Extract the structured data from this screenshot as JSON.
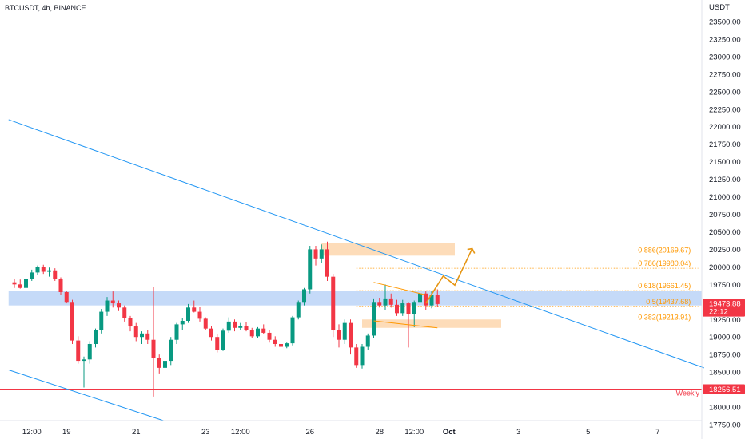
{
  "header": {
    "symbol_title": "BTCUSDT, 4h, BINANCE",
    "currency": "USDT"
  },
  "colors": {
    "up": "#089981",
    "down": "#f23645",
    "trendline": "#2196f3",
    "fib": "#ff9800",
    "zone_blue": "#bbd3f7",
    "zone_orange": "#fcd3a8",
    "weekly_line": "#f23645",
    "price_badge": "#f23645"
  },
  "chart_data": {
    "type": "candlestick",
    "ylim": [
      17750,
      23750
    ],
    "y_ticks": [
      "23500.00",
      "23250.00",
      "23000.00",
      "22750.00",
      "22500.00",
      "22250.00",
      "22000.00",
      "21750.00",
      "21500.00",
      "21250.00",
      "21000.00",
      "20750.00",
      "20500.00",
      "20250.00",
      "20000.00",
      "19750.00",
      "19500.00",
      "19250.00",
      "19000.00",
      "18750.00",
      "18500.00",
      "18250.00",
      "18000.00",
      "17750.00"
    ],
    "x_ticks": [
      {
        "label": "12:00",
        "t": 3
      },
      {
        "label": "19",
        "t": 9
      },
      {
        "label": "21",
        "t": 21
      },
      {
        "label": "23",
        "t": 33
      },
      {
        "label": "12:00",
        "t": 39
      },
      {
        "label": "26",
        "t": 51
      },
      {
        "label": "28",
        "t": 63
      },
      {
        "label": "12:00",
        "t": 69
      },
      {
        "label": "Oct",
        "t": 75
      },
      {
        "label": "3",
        "t": 87
      },
      {
        "label": "5",
        "t": 99
      },
      {
        "label": "7",
        "t": 111
      }
    ],
    "candles": [
      [
        0,
        19780,
        19830,
        19700,
        19750
      ],
      [
        1,
        19750,
        19820,
        19690,
        19700
      ],
      [
        2,
        19700,
        19860,
        19680,
        19830
      ],
      [
        3,
        19830,
        19960,
        19800,
        19920
      ],
      [
        4,
        19920,
        20020,
        19880,
        20000
      ],
      [
        5,
        20000,
        20030,
        19900,
        19930
      ],
      [
        6,
        19930,
        19990,
        19860,
        19950
      ],
      [
        7,
        19950,
        19980,
        19800,
        19830
      ],
      [
        8,
        19830,
        19850,
        19600,
        19640
      ],
      [
        9,
        19640,
        19660,
        19480,
        19500
      ],
      [
        10,
        19500,
        19530,
        18900,
        18950
      ],
      [
        11,
        18950,
        19010,
        18620,
        18660
      ],
      [
        12,
        18660,
        18720,
        18280,
        18680
      ],
      [
        13,
        18680,
        18940,
        18620,
        18900
      ],
      [
        14,
        18900,
        19120,
        18850,
        19100
      ],
      [
        15,
        19100,
        19400,
        19050,
        19360
      ],
      [
        16,
        19360,
        19570,
        19300,
        19520
      ],
      [
        17,
        19520,
        19650,
        19420,
        19480
      ],
      [
        18,
        19480,
        19520,
        19370,
        19420
      ],
      [
        19,
        19420,
        19450,
        19220,
        19270
      ],
      [
        20,
        19270,
        19300,
        19080,
        19150
      ],
      [
        21,
        19150,
        19200,
        18940,
        19000
      ],
      [
        22,
        19000,
        19080,
        18900,
        19050
      ],
      [
        23,
        19050,
        19100,
        18900,
        18960
      ],
      [
        24,
        18960,
        19720,
        18150,
        18700
      ],
      [
        25,
        18700,
        18750,
        18480,
        18560
      ],
      [
        26,
        18560,
        18720,
        18500,
        18660
      ],
      [
        27,
        18660,
        19000,
        18600,
        18960
      ],
      [
        28,
        18960,
        19200,
        18900,
        19180
      ],
      [
        29,
        19180,
        19270,
        19100,
        19230
      ],
      [
        30,
        19230,
        19470,
        19200,
        19420
      ],
      [
        31,
        19420,
        19520,
        19350,
        19360
      ],
      [
        32,
        19360,
        19430,
        19220,
        19260
      ],
      [
        33,
        19260,
        19280,
        19100,
        19120
      ],
      [
        34,
        19120,
        19160,
        18950,
        19000
      ],
      [
        35,
        19000,
        19040,
        18780,
        18820
      ],
      [
        36,
        18820,
        19120,
        18800,
        19090
      ],
      [
        37,
        19090,
        19280,
        19060,
        19220
      ],
      [
        38,
        19220,
        19250,
        19080,
        19130
      ],
      [
        39,
        19130,
        19200,
        19100,
        19160
      ],
      [
        40,
        19160,
        19210,
        19080,
        19100
      ],
      [
        41,
        19100,
        19130,
        18990,
        19010
      ],
      [
        42,
        19010,
        19140,
        18990,
        19120
      ],
      [
        43,
        19120,
        19180,
        19040,
        19060
      ],
      [
        44,
        19060,
        19100,
        18920,
        18960
      ],
      [
        45,
        18960,
        19010,
        18860,
        18900
      ],
      [
        46,
        18900,
        18950,
        18800,
        18860
      ],
      [
        47,
        18860,
        18920,
        18840,
        18910
      ],
      [
        48,
        18910,
        19300,
        18880,
        19280
      ],
      [
        49,
        19280,
        19520,
        19250,
        19500
      ],
      [
        50,
        19500,
        19700,
        19450,
        19680
      ],
      [
        51,
        19680,
        20300,
        19620,
        20250
      ],
      [
        52,
        20250,
        20300,
        20020,
        20120
      ],
      [
        53,
        20120,
        20320,
        20060,
        20250
      ],
      [
        54,
        20250,
        20360,
        19800,
        19860
      ],
      [
        55,
        19860,
        19900,
        19000,
        19100
      ],
      [
        56,
        19100,
        19180,
        18850,
        18960
      ],
      [
        57,
        18960,
        19250,
        18900,
        19200
      ],
      [
        58,
        19200,
        19250,
        18750,
        18850
      ],
      [
        59,
        18850,
        18900,
        18560,
        18600
      ],
      [
        60,
        18600,
        18900,
        18550,
        18860
      ],
      [
        61,
        18860,
        19050,
        18820,
        19020
      ],
      [
        62,
        19020,
        19550,
        18990,
        19500
      ],
      [
        63,
        19500,
        19560,
        19420,
        19450
      ],
      [
        64,
        19450,
        19750,
        19380,
        19550
      ],
      [
        65,
        19550,
        19620,
        19420,
        19460
      ],
      [
        66,
        19460,
        19530,
        19300,
        19340
      ],
      [
        67,
        19340,
        19530,
        19300,
        19480
      ],
      [
        68,
        19480,
        19500,
        18850,
        19330
      ],
      [
        69,
        19330,
        19520,
        19140,
        19500
      ],
      [
        70,
        19500,
        19720,
        19430,
        19620
      ],
      [
        71,
        19620,
        19650,
        19380,
        19450
      ],
      [
        72,
        19450,
        19650,
        19410,
        19600
      ],
      [
        73,
        19600,
        19680,
        19430,
        19470
      ]
    ],
    "fib_levels": [
      {
        "label": "0.886(20169.67)",
        "price": 20169.67
      },
      {
        "label": "0.786(19980.04)",
        "price": 19980.04
      },
      {
        "label": "0.618(19661.45)",
        "price": 19661.45
      },
      {
        "label": "0.5(19437.68)",
        "price": 19437.68
      },
      {
        "label": "0.382(19213.91)",
        "price": 19213.91
      }
    ],
    "zones": [
      {
        "name": "resistance-zone",
        "color": "blue",
        "t0": -1,
        "t1": 119,
        "p0": 19450,
        "p1": 19660
      },
      {
        "name": "supply-zone",
        "color": "orange",
        "t0": 53,
        "t1": 76,
        "p0": 20160,
        "p1": 20340
      },
      {
        "name": "demand-zone",
        "color": "orange",
        "t0": 60,
        "t1": 84,
        "p0": 19130,
        "p1": 19250
      }
    ],
    "trendlines": [
      {
        "name": "upper-trendline",
        "t0": -1,
        "p0": 22100,
        "t1": 119,
        "p1": 18560
      },
      {
        "name": "lower-trendline",
        "t0": -1,
        "p0": 18530,
        "t1": 26,
        "p1": 17800
      }
    ],
    "triangle": [
      {
        "t0": 62,
        "p0": 19780,
        "t1": 71,
        "p1": 19600
      },
      {
        "t0": 62,
        "p0": 19230,
        "t1": 73,
        "p1": 19130
      }
    ],
    "projection": [
      [
        71,
        19480
      ],
      [
        74,
        19870
      ],
      [
        76,
        19740
      ],
      [
        79,
        20260
      ]
    ],
    "weekly_level": {
      "price": 18256.51,
      "label": "Weekly",
      "badge": "18256.51"
    },
    "current_price": {
      "price": 19473.88,
      "badge": "19473.88",
      "countdown": "22:12"
    }
  }
}
